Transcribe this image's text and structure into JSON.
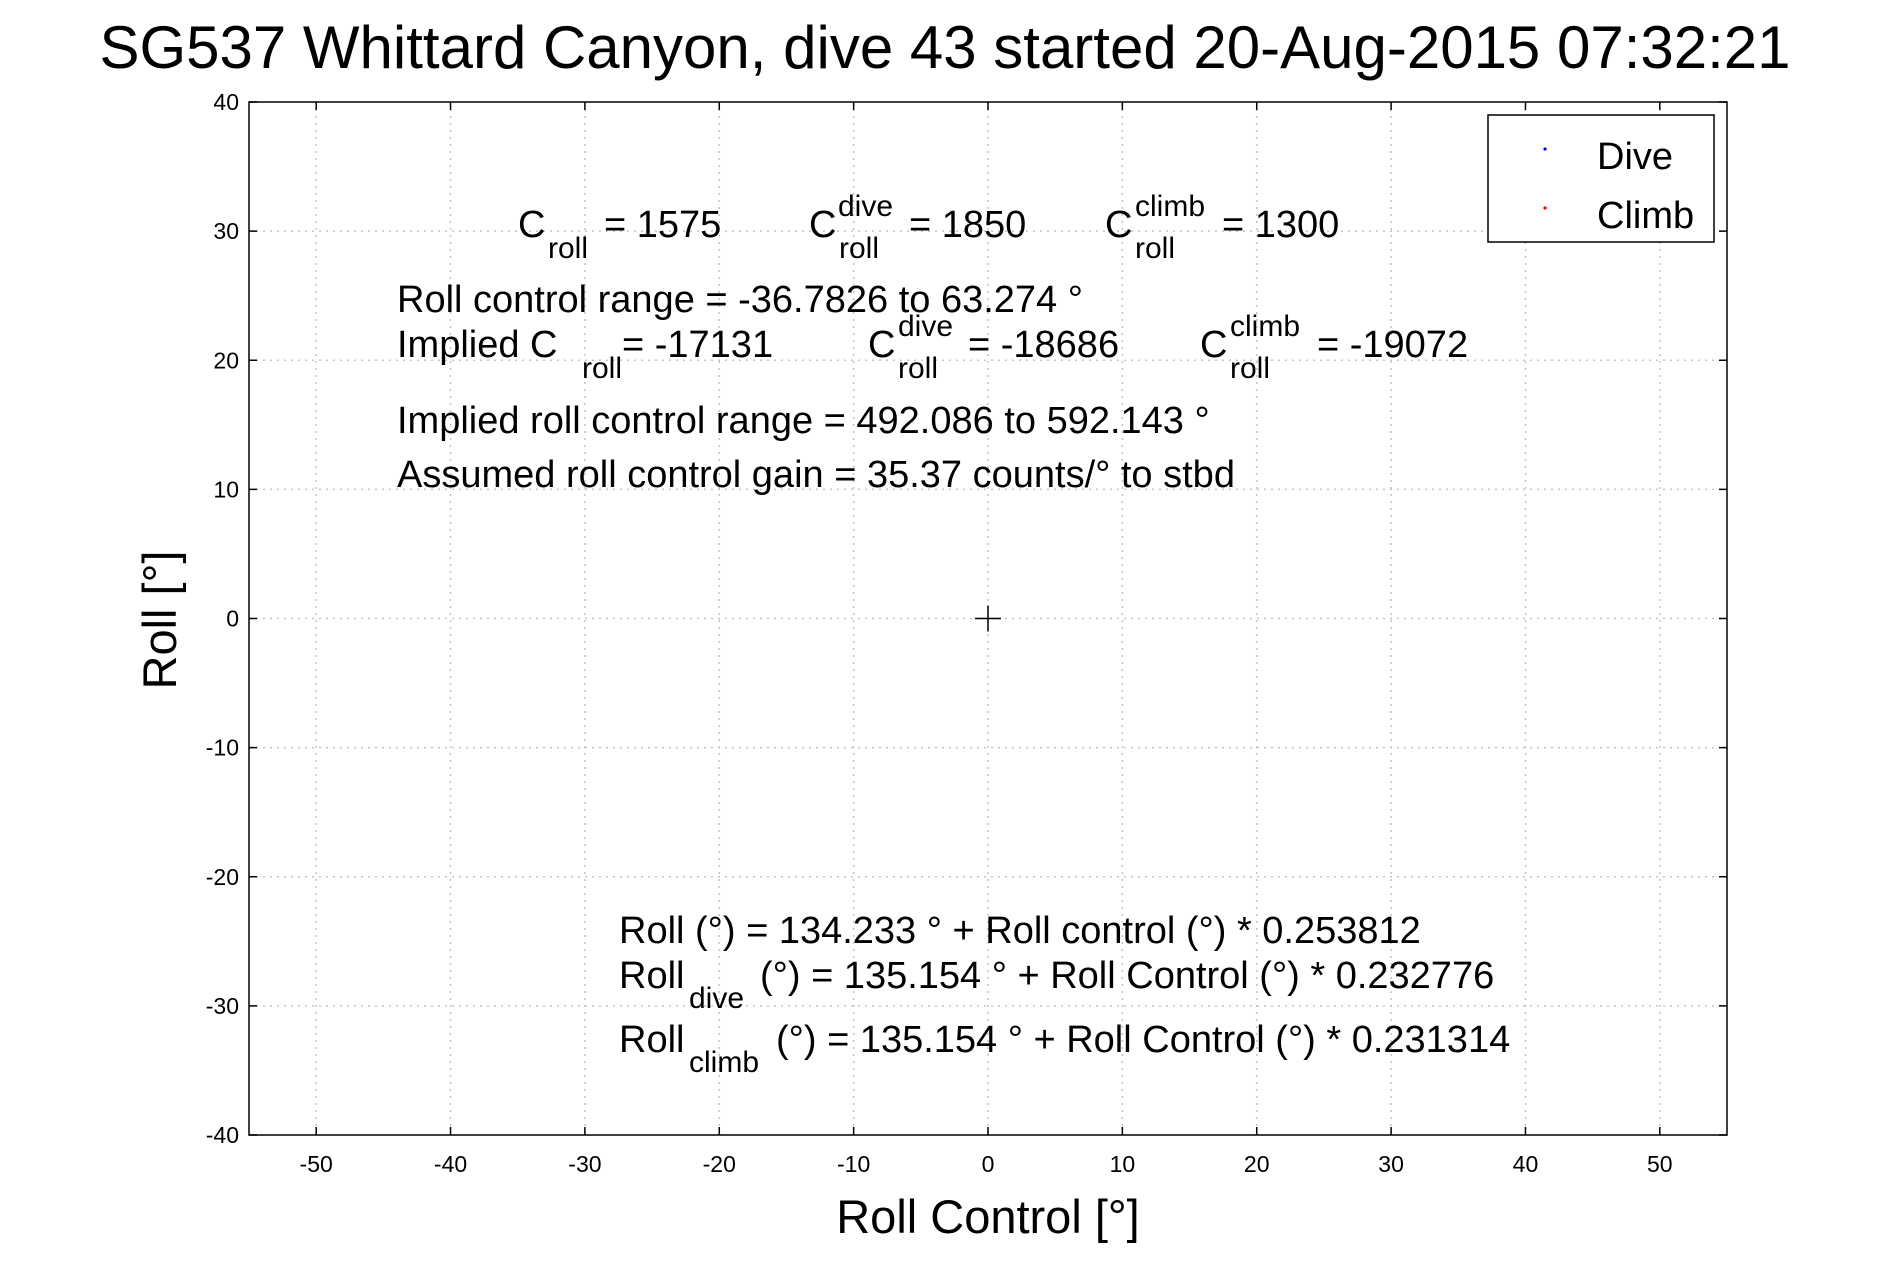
{
  "chart_data": {
    "type": "scatter",
    "title": "SG537 Whittard Canyon, dive 43 started 20-Aug-2015 07:32:21",
    "xlabel": "Roll Control [°]",
    "ylabel": "Roll [°]",
    "xlim": [
      -55,
      55
    ],
    "ylim": [
      -40,
      40
    ],
    "xticks": [
      -50,
      -40,
      -30,
      -20,
      -10,
      0,
      10,
      20,
      30,
      40,
      50
    ],
    "yticks": [
      -40,
      -30,
      -20,
      -10,
      0,
      10,
      20,
      30,
      40
    ],
    "grid": true,
    "legend_position": "top-right",
    "series": [
      {
        "name": "Dive",
        "color": "#0000ff",
        "points": []
      },
      {
        "name": "Climb",
        "color": "#ff0000",
        "points": []
      }
    ],
    "center_marker": {
      "x": 0,
      "y": 0
    },
    "annotations": {
      "c_roll": {
        "base": "C",
        "sub": "roll",
        "value": "= 1575"
      },
      "c_roll_dive": {
        "base": "C",
        "sup": "dive",
        "sub": "roll",
        "value": "= 1850"
      },
      "c_roll_climb": {
        "base": "C",
        "sup": "climb",
        "sub": "roll",
        "value": "= 1300"
      },
      "roll_control_range": "Roll control range = -36.7826 to 63.274 °",
      "implied_c_roll": {
        "prefix": "Implied C",
        "sub": "roll",
        "value": "= -17131"
      },
      "implied_c_roll_dive": {
        "base": "C",
        "sup": "dive",
        "sub": "roll",
        "value": "= -18686"
      },
      "implied_c_roll_climb": {
        "base": "C",
        "sup": "climb",
        "sub": "roll",
        "value": "= -19072"
      },
      "implied_range": "Implied roll control range = 492.086 to 592.143 °",
      "assumed_gain": "Assumed roll control gain = 35.37 counts/° to stbd",
      "fit_all": "Roll (°) = 134.233 ° + Roll control (°) * 0.253812",
      "fit_dive": {
        "base": "Roll",
        "sub": "dive",
        "rest": "(°) = 135.154 ° + Roll Control (°) * 0.232776"
      },
      "fit_climb": {
        "base": "Roll",
        "sub": "climb",
        "rest": "(°) = 135.154 ° + Roll Control (°) * 0.231314"
      }
    }
  }
}
